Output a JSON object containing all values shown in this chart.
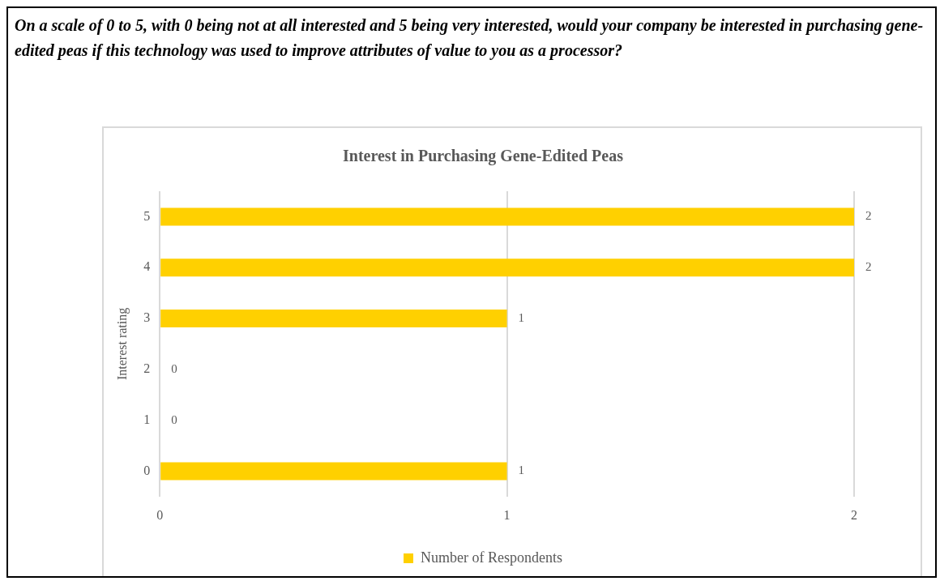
{
  "chart_data": {
    "type": "bar",
    "orientation": "horizontal",
    "title": "On a scale of 0 to 5, with 0 being not at all interested and 5 being very interested, would your company be interested in purchasing gene-edited peas if this technology was used to improve attributes of value to you as a processor?",
    "subtitle": "Interest in Purchasing Gene-Edited Peas",
    "ylabel": "Interest rating",
    "categories": [
      "5",
      "4",
      "3",
      "2",
      "1",
      "0"
    ],
    "series": [
      {
        "name": "Number of Respondents",
        "color": "#ffd000",
        "values": [
          2,
          2,
          1,
          0,
          0,
          1
        ]
      }
    ],
    "xlim": [
      0,
      2
    ],
    "xticks": [
      0,
      1,
      2
    ],
    "grid": "x",
    "legend": "bottom",
    "data_labels": true
  }
}
